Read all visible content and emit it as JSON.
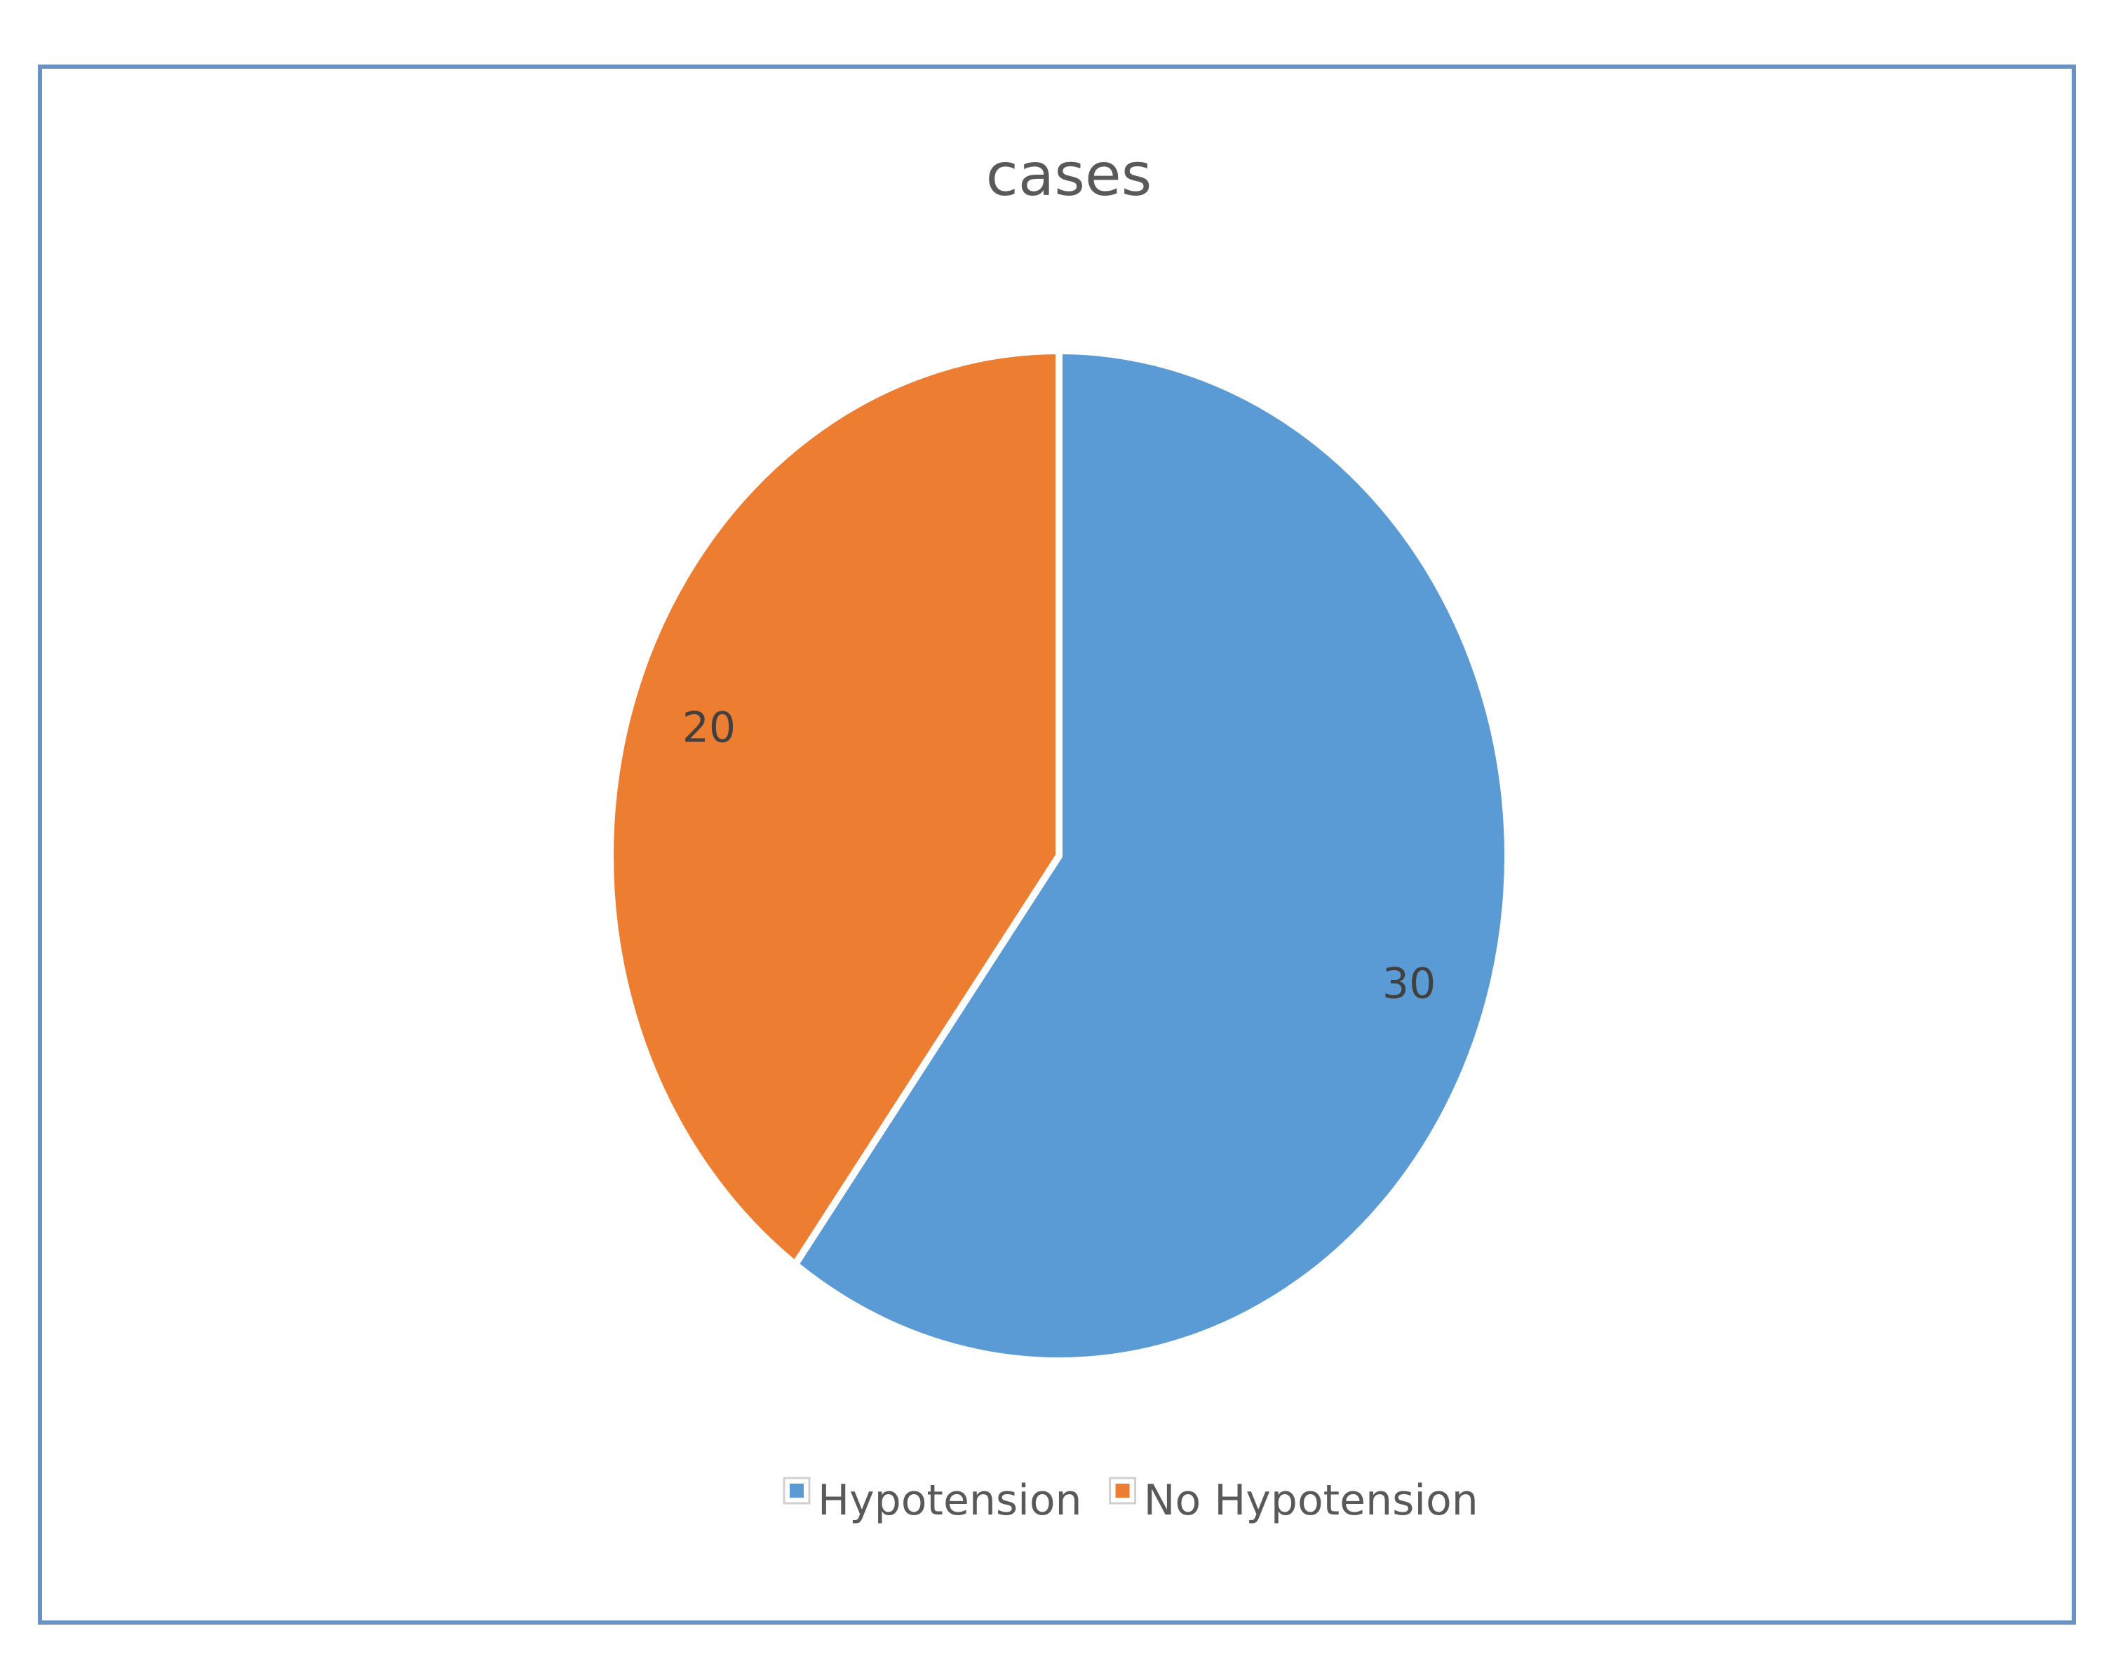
{
  "chart_data": {
    "type": "pie",
    "title": "cases",
    "categories": [
      "Hypotension",
      "No Hypotension"
    ],
    "values": [
      30,
      20
    ],
    "colors": [
      "#5b9bd5",
      "#ed7d31"
    ],
    "start_angle_deg": 0,
    "direction": "clockwise",
    "data_labels": true,
    "legend": "bottom"
  }
}
